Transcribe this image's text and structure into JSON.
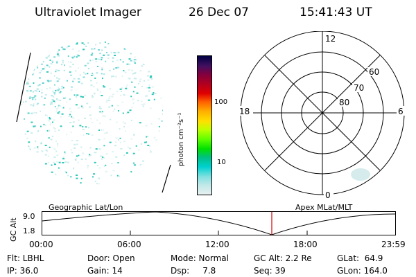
{
  "header": {
    "instrument": "Ultraviolet Imager",
    "date": "26 Dec 07",
    "time": "15:41:43 UT"
  },
  "colorbar": {
    "unit_label": "photon cm⁻²s⁻¹",
    "tick_labels": [
      "100",
      "10"
    ],
    "colors": [
      "#000040",
      "#401060",
      "#800040",
      "#b00020",
      "#e00000",
      "#ff6000",
      "#ffb000",
      "#ffe000",
      "#c0ff00",
      "#60ff00",
      "#00e000",
      "#00c080",
      "#00d0d0",
      "#80e0e0",
      "#c0e8e8",
      "#e8f0f0"
    ]
  },
  "polar": {
    "mlt_labels": {
      "top": "12",
      "bottom": "0",
      "left": "18",
      "right": "6"
    },
    "lat_labels": [
      "60",
      "70",
      "80"
    ]
  },
  "timeline": {
    "gc_alt_label": "GC Alt",
    "ymax": "9.0",
    "ymin": "1.8",
    "left_title": "Geographic Lat/Lon",
    "right_title": "Apex MLat/MLT",
    "time_labels": [
      "00:00",
      "06:00",
      "12:00",
      "18:00",
      "23:59"
    ]
  },
  "footer": {
    "row1": {
      "flt": "Flt: LBHL",
      "door": "Door: Open",
      "mode": "Mode: Normal",
      "gc_alt": "GC Alt: 2.2 Re",
      "glat": "GLat:  64.9"
    },
    "row2": {
      "ip": "IP: 36.0",
      "gain": "Gain: 14",
      "dsp": "Dsp:     7.8",
      "seq": "Seq: 39",
      "glon": "GLon: 164.0"
    }
  }
}
